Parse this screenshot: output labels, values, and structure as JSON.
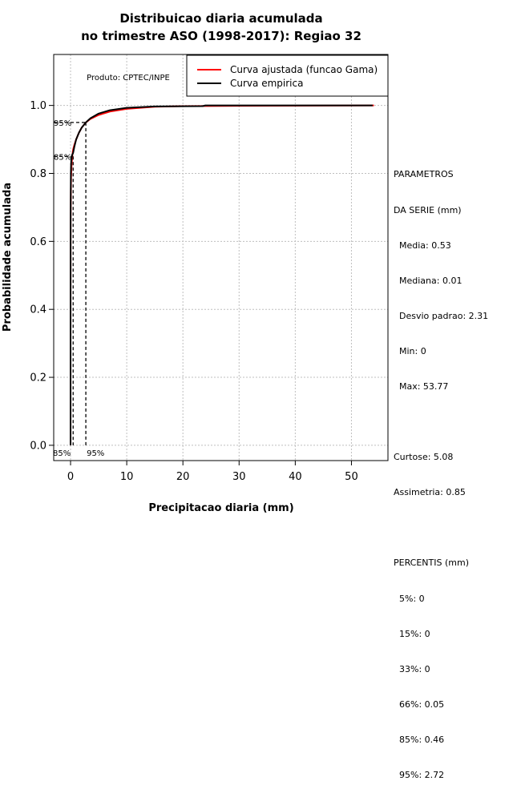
{
  "chart_data": {
    "type": "line",
    "title": [
      "Distribuicao diaria acumulada",
      "no trimestre ASO (1998-2017): Regiao 32"
    ],
    "xlabel": "Precipitacao diaria (mm)",
    "ylabel": "Probabilidade acumulada",
    "xlim": [
      -3,
      56.5
    ],
    "ylim": [
      -0.045,
      1.15
    ],
    "xticks": [
      "0",
      "10",
      "20",
      "30",
      "40",
      "50"
    ],
    "xtick_values": [
      0,
      10,
      20,
      30,
      40,
      50
    ],
    "yticks": [
      "0.0",
      "0.2",
      "0.4",
      "0.6",
      "0.8",
      "1.0"
    ],
    "ytick_values": [
      0,
      0.2,
      0.4,
      0.6,
      0.8,
      1.0
    ],
    "grid": true,
    "legend_position": "top-right",
    "watermark": "Produto: CPTEC/INPE",
    "series": [
      {
        "name": "Curva ajustada (funcao Gama)",
        "color": "#ff0000",
        "x": [
          0,
          0.01,
          0.05,
          0.1,
          0.2,
          0.3,
          0.46,
          0.7,
          1.0,
          1.5,
          2.0,
          2.72,
          3.5,
          5,
          7,
          10,
          15,
          20,
          30,
          54
        ],
        "y": [
          0.24,
          0.66,
          0.75,
          0.79,
          0.83,
          0.85,
          0.87,
          0.885,
          0.9,
          0.92,
          0.935,
          0.95,
          0.96,
          0.972,
          0.982,
          0.99,
          0.996,
          0.998,
          0.999,
          1.0
        ]
      },
      {
        "name": "Curva empirica",
        "color": "#000000",
        "x": [
          0,
          0.01,
          0.05,
          0.1,
          0.2,
          0.3,
          0.46,
          0.7,
          1.0,
          1.5,
          2.0,
          2.72,
          3.5,
          5,
          7,
          10,
          15,
          23.5,
          24,
          53.77
        ],
        "y": [
          0.33,
          0.68,
          0.8,
          0.83,
          0.845,
          0.855,
          0.86,
          0.88,
          0.9,
          0.92,
          0.935,
          0.95,
          0.962,
          0.976,
          0.986,
          0.993,
          0.997,
          0.998,
          1.0,
          1.0
        ]
      }
    ],
    "reference_lines": [
      {
        "label": "85%",
        "x": 0.46,
        "y": 0.85
      },
      {
        "label": "95%",
        "x": 2.72,
        "y": 0.95
      }
    ]
  },
  "stats_panel": {
    "lines": [
      "PARAMETROS",
      "DA SERIE (mm)",
      "  Media: 0.53",
      "  Mediana: 0.01",
      "  Desvio padrao: 2.31",
      "  Min: 0",
      "  Max: 53.77",
      "",
      "Curtose: 5.08",
      "Assimetria: 0.85",
      "",
      "PERCENTIS (mm)",
      "  5%: 0",
      "  15%: 0",
      "  33%: 0",
      "  66%: 0.05",
      "  85%: 0.46",
      "  95%: 2.72"
    ]
  }
}
